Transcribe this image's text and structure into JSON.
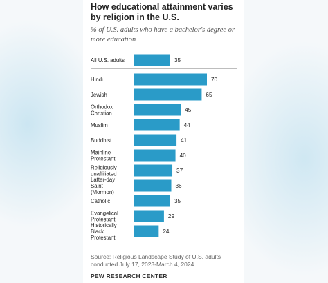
{
  "header": {
    "title": "How educational attainment varies by religion in the U.S.",
    "subtitle": "% of U.S. adults who have a bachelor's degree or more education"
  },
  "footer": {
    "source": "Source: Religious Landscape Study of U.S. adults conducted July 17, 2023-March 4, 2024.",
    "brand": "PEW RESEARCH CENTER"
  },
  "chart_data": {
    "type": "bar",
    "orientation": "horizontal",
    "title": "How educational attainment varies by religion in the U.S.",
    "subtitle": "% of U.S. adults who have a bachelor's degree or more education",
    "categories": [
      [
        "All U.S. adults"
      ],
      [
        "Hindu"
      ],
      [
        "Jewish"
      ],
      [
        "Orthodox",
        "Christian"
      ],
      [
        "Muslim"
      ],
      [
        "Buddhist"
      ],
      [
        "Mainline",
        "Protestant"
      ],
      [
        "Religiously",
        "unaffiliated"
      ],
      [
        "Latter-day",
        "Saint",
        "(Mormon)"
      ],
      [
        "Catholic"
      ],
      [
        "Evangelical",
        "Protestant"
      ],
      [
        "Historically",
        "Black",
        "Protestant"
      ]
    ],
    "values": [
      35,
      70,
      65,
      45,
      44,
      41,
      40,
      37,
      36,
      35,
      29,
      24
    ],
    "bar_color": "#2a9bc8",
    "xlim": [
      0,
      70
    ],
    "grid": false,
    "legend": "none"
  }
}
